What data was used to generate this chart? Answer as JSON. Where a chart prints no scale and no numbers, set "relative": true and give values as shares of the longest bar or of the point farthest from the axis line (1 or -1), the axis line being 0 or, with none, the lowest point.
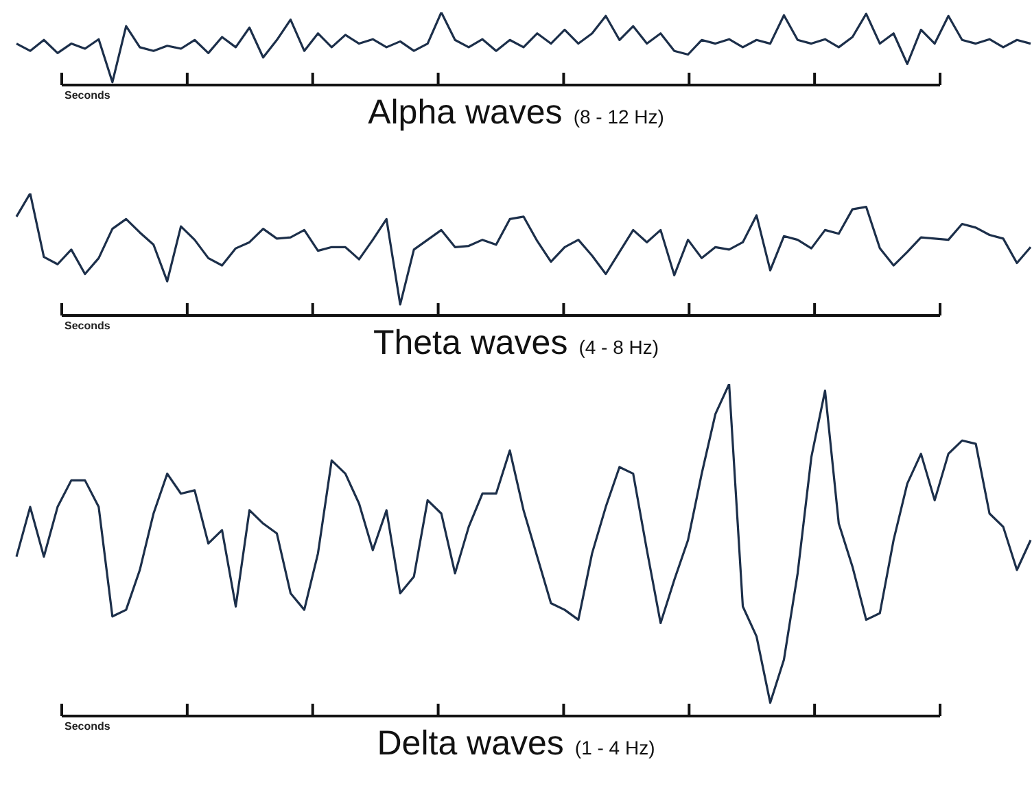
{
  "chart_data": [
    {
      "type": "line",
      "title": "Alpha waves",
      "subtitle": "(8 - 12 Hz)",
      "xlabel": "Seconds",
      "relative": true,
      "tick_labels": false,
      "legend": false,
      "grid": false,
      "categories": [
        null,
        null,
        null,
        null,
        null,
        null,
        null,
        null,
        null,
        null,
        null,
        null,
        null,
        null,
        null,
        null,
        null,
        null,
        null,
        null,
        null,
        null,
        null,
        null,
        null,
        null,
        null,
        null,
        null,
        null,
        null,
        null,
        null,
        null,
        null,
        null,
        null,
        null,
        null,
        null,
        null,
        null,
        null,
        null,
        null,
        null,
        null,
        null,
        null,
        null,
        null,
        null,
        null,
        null,
        null,
        null,
        null,
        null,
        null,
        null,
        null,
        null,
        null,
        null,
        null,
        null,
        null,
        null,
        null,
        null,
        null,
        null,
        null,
        null,
        null
      ],
      "series": [
        {
          "color": "#1c2f4a",
          "values": [
            0.57,
            0.47,
            0.62,
            0.44,
            0.57,
            0.5,
            0.63,
            0.04,
            0.81,
            0.52,
            0.47,
            0.54,
            0.5,
            0.62,
            0.44,
            0.66,
            0.52,
            0.79,
            0.38,
            0.62,
            0.9,
            0.47,
            0.71,
            0.52,
            0.69,
            0.57,
            0.63,
            0.52,
            0.6,
            0.47,
            0.57,
            1,
            0.62,
            0.52,
            0.63,
            0.47,
            0.62,
            0.52,
            0.71,
            0.57,
            0.76,
            0.57,
            0.71,
            0.95,
            0.62,
            0.81,
            0.57,
            0.71,
            0.47,
            0.42,
            0.62,
            0.57,
            0.63,
            0.52,
            0.62,
            0.57,
            0.96,
            0.62,
            0.57,
            0.63,
            0.52,
            0.66,
            0.98,
            0.57,
            0.71,
            0.29,
            0.76,
            0.57,
            0.95,
            0.62,
            0.57,
            0.63,
            0.52,
            0.62,
            0.57
          ]
        }
      ]
    },
    {
      "type": "line",
      "title": "Theta waves",
      "subtitle": "(4 - 8 Hz)",
      "xlabel": "Seconds",
      "relative": true,
      "tick_labels": false,
      "legend": false,
      "grid": false,
      "categories": [
        null,
        null,
        null,
        null,
        null,
        null,
        null,
        null,
        null,
        null,
        null,
        null,
        null,
        null,
        null,
        null,
        null,
        null,
        null,
        null,
        null,
        null,
        null,
        null,
        null,
        null,
        null,
        null,
        null,
        null,
        null,
        null,
        null,
        null,
        null,
        null,
        null,
        null,
        null,
        null,
        null,
        null,
        null,
        null,
        null,
        null,
        null,
        null,
        null,
        null,
        null,
        null,
        null,
        null,
        null,
        null,
        null,
        null,
        null,
        null,
        null,
        null,
        null,
        null,
        null,
        null,
        null,
        null,
        null,
        null,
        null,
        null,
        null,
        null,
        null
      ],
      "series": [
        {
          "color": "#1c2f4a",
          "values": [
            0.81,
            1,
            0.48,
            0.42,
            0.54,
            0.34,
            0.47,
            0.71,
            0.79,
            0.68,
            0.58,
            0.28,
            0.73,
            0.62,
            0.47,
            0.41,
            0.55,
            0.6,
            0.71,
            0.63,
            0.64,
            0.7,
            0.53,
            0.56,
            0.56,
            0.46,
            0.62,
            0.79,
            0.09,
            0.54,
            0.62,
            0.7,
            0.56,
            0.57,
            0.62,
            0.58,
            0.79,
            0.81,
            0.61,
            0.44,
            0.56,
            0.62,
            0.49,
            0.34,
            0.52,
            0.7,
            0.6,
            0.7,
            0.33,
            0.62,
            0.47,
            0.56,
            0.54,
            0.6,
            0.82,
            0.37,
            0.65,
            0.62,
            0.55,
            0.7,
            0.67,
            0.87,
            0.89,
            0.55,
            0.41,
            0.52,
            0.64,
            0.63,
            0.62,
            0.75,
            0.72,
            0.66,
            0.63,
            0.43,
            0.56
          ]
        }
      ]
    },
    {
      "type": "line",
      "title": "Delta waves",
      "subtitle": "(1 - 4 Hz)",
      "xlabel": "Seconds",
      "relative": true,
      "tick_labels": false,
      "legend": false,
      "grid": false,
      "categories": [
        null,
        null,
        null,
        null,
        null,
        null,
        null,
        null,
        null,
        null,
        null,
        null,
        null,
        null,
        null,
        null,
        null,
        null,
        null,
        null,
        null,
        null,
        null,
        null,
        null,
        null,
        null,
        null,
        null,
        null,
        null,
        null,
        null,
        null,
        null,
        null,
        null,
        null,
        null,
        null,
        null,
        null,
        null,
        null,
        null,
        null,
        null,
        null,
        null,
        null,
        null,
        null,
        null,
        null,
        null,
        null,
        null,
        null,
        null,
        null,
        null,
        null,
        null,
        null,
        null,
        null,
        null,
        null,
        null,
        null,
        null,
        null,
        null,
        null,
        null
      ],
      "series": [
        {
          "color": "#1c2f4a",
          "values": [
            0.48,
            0.63,
            0.48,
            0.63,
            0.71,
            0.71,
            0.63,
            0.3,
            0.32,
            0.44,
            0.61,
            0.73,
            0.67,
            0.68,
            0.52,
            0.56,
            0.33,
            0.62,
            0.58,
            0.55,
            0.37,
            0.32,
            0.49,
            0.77,
            0.73,
            0.64,
            0.5,
            0.62,
            0.37,
            0.42,
            0.65,
            0.61,
            0.43,
            0.57,
            0.67,
            0.67,
            0.8,
            0.62,
            0.48,
            0.34,
            0.32,
            0.29,
            0.49,
            0.63,
            0.75,
            0.73,
            0.5,
            0.28,
            0.41,
            0.53,
            0.73,
            0.91,
            1,
            0.33,
            0.24,
            0.04,
            0.17,
            0.43,
            0.78,
            0.98,
            0.58,
            0.45,
            0.29,
            0.31,
            0.53,
            0.7,
            0.79,
            0.65,
            0.79,
            0.83,
            0.82,
            0.61,
            0.57,
            0.44,
            0.53
          ]
        }
      ]
    }
  ]
}
